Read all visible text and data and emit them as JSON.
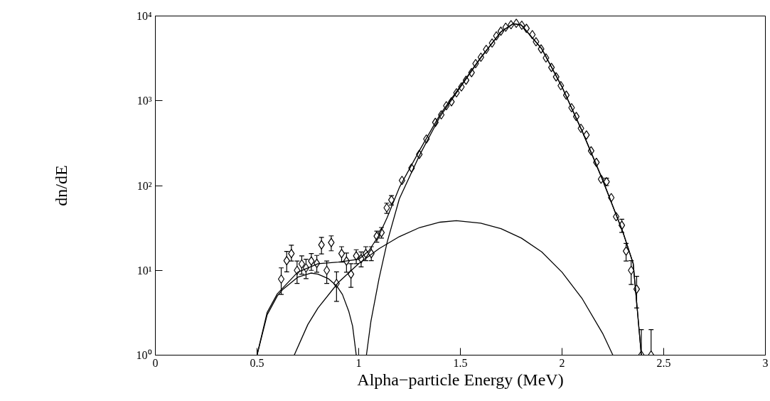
{
  "chart_data": {
    "type": "scatter",
    "xlabel": "Alpha−particle Energy (MeV)",
    "ylabel": "dn/dE",
    "log": "y",
    "grid": false,
    "marker": "diamond",
    "xlim": [
      0,
      3
    ],
    "xticks": [
      0,
      0.5,
      1,
      1.5,
      2,
      2.5,
      3
    ],
    "ylim": [
      1,
      10000
    ],
    "yticks": [
      {
        "value": 1,
        "label": "10⁰"
      },
      {
        "value": 10,
        "label": "10¹"
      },
      {
        "value": 100,
        "label": "10²"
      },
      {
        "value": 1000,
        "label": "10³"
      },
      {
        "value": 10000,
        "label": "10⁴"
      }
    ],
    "series": [
      {
        "color": "#000000",
        "x": [
          0.619,
          0.646,
          0.669,
          0.697,
          0.72,
          0.741,
          0.767,
          0.794,
          0.817,
          0.843,
          0.865,
          0.891,
          0.916,
          0.94,
          0.962,
          0.988,
          1.012,
          1.035,
          1.062,
          1.089,
          1.112,
          1.138,
          1.161,
          1.213,
          1.26,
          1.298,
          1.333,
          1.377,
          1.406,
          1.431,
          1.456,
          1.481,
          1.505,
          1.528,
          1.555,
          1.575,
          1.601,
          1.627,
          1.656,
          1.677,
          1.699,
          1.723,
          1.749,
          1.775,
          1.802,
          1.825,
          1.854,
          1.872,
          1.897,
          1.921,
          1.948,
          1.971,
          1.994,
          2.021,
          2.047,
          2.07,
          2.093,
          2.12,
          2.143,
          2.169,
          2.192,
          2.219,
          2.242,
          2.266,
          2.294,
          2.315,
          2.34,
          2.367,
          2.39,
          2.438
        ],
        "values": [
          7.9,
          13,
          15.8,
          10,
          11.9,
          10.7,
          12.9,
          12.1,
          20,
          10,
          21.3,
          7,
          15.8,
          12.9,
          9,
          14.8,
          13.7,
          15.8,
          15.8,
          25.3,
          27.9,
          54.7,
          67.7,
          115,
          161,
          233,
          354,
          556,
          683,
          873,
          973,
          1243,
          1458,
          1749,
          2148,
          2744,
          3264,
          4037,
          4801,
          5822,
          6625,
          7380,
          7890,
          8200,
          7780,
          7160,
          6020,
          4970,
          4090,
          3200,
          2476,
          1914,
          1507,
          1166,
          829,
          653,
          473,
          395,
          257,
          188,
          119,
          111,
          72,
          43,
          34,
          16.9,
          10,
          6,
          1,
          1
        ],
        "errors": [
          [
            5.2,
            10.7
          ],
          [
            9.6,
            16.7
          ],
          [
            12.9,
            19.8
          ],
          [
            7,
            12.9
          ],
          [
            9,
            14.8
          ],
          [
            8,
            13.5
          ],
          [
            10,
            15.8
          ],
          [
            9.5,
            15
          ],
          [
            15.6,
            24.5
          ],
          [
            7,
            12.9
          ],
          [
            17,
            25.5
          ],
          [
            4.3,
            9.6
          ],
          [
            12.5,
            19
          ],
          [
            9.5,
            16
          ],
          [
            6.3,
            12
          ],
          [
            12,
            17.5
          ],
          [
            11,
            16.5
          ],
          [
            13,
            19
          ],
          [
            13,
            19
          ],
          [
            21.5,
            29
          ],
          [
            24,
            32
          ],
          [
            47,
            62
          ],
          [
            59,
            76
          ],
          null,
          null,
          null,
          null,
          null,
          null,
          null,
          null,
          null,
          null,
          null,
          null,
          null,
          null,
          null,
          null,
          null,
          null,
          null,
          null,
          null,
          null,
          null,
          null,
          null,
          null,
          null,
          null,
          null,
          null,
          null,
          null,
          null,
          null,
          null,
          null,
          null,
          null,
          [
            100,
            122
          ],
          null,
          null,
          [
            28,
            40
          ],
          [
            12.9,
            20.8
          ],
          [
            6.8,
            13
          ],
          [
            3.6,
            8.5
          ],
          [
            1,
            2
          ],
          [
            1,
            2
          ]
        ]
      },
      {
        "type": "line",
        "marker": "none",
        "color": "#000000",
        "x": [
          0.5,
          0.55,
          0.6,
          0.625,
          0.7,
          0.765,
          0.8,
          0.85,
          0.893,
          0.92,
          0.951,
          0.97,
          0.988
        ],
        "values": [
          1,
          3,
          5,
          5.9,
          8.3,
          9.3,
          9,
          8,
          6.5,
          5.2,
          3.3,
          2.2,
          1
        ]
      },
      {
        "type": "line",
        "marker": "none",
        "color": "#000000",
        "x": [
          0.683,
          0.75,
          0.8,
          0.9,
          1,
          1.1,
          1.2,
          1.3,
          1.4,
          1.48,
          1.6,
          1.7,
          1.8,
          1.9,
          2,
          2.1,
          2.2,
          2.25
        ],
        "values": [
          1,
          2.3,
          3.6,
          7.2,
          12,
          18,
          25,
          32,
          37,
          38.5,
          36,
          31,
          24,
          16.5,
          9.5,
          4.6,
          1.8,
          1
        ]
      },
      {
        "type": "line",
        "marker": "none",
        "color": "#000000",
        "x": [
          1.038,
          1.06,
          1.1,
          1.14,
          1.2,
          1.3,
          1.4,
          1.5,
          1.6,
          1.7,
          1.76,
          1.8,
          1.9,
          2,
          2.1,
          2.2,
          2.3,
          2.35,
          2.39
        ],
        "values": [
          1,
          2.5,
          8,
          21.5,
          70,
          230,
          650,
          1450,
          3200,
          6500,
          8100,
          7800,
          4100,
          1450,
          430,
          115,
          28,
          12,
          1
        ]
      },
      {
        "type": "line",
        "marker": "none",
        "color": "#000000",
        "x": [
          0.5,
          0.55,
          0.6,
          0.7,
          0.8,
          0.9,
          1,
          1.05,
          1.1,
          1.14,
          1.2,
          1.3,
          1.4,
          1.5,
          1.6,
          1.7,
          1.76,
          1.8,
          1.9,
          2,
          2.1,
          2.2,
          2.3,
          2.35,
          2.39
        ],
        "values": [
          1,
          3.2,
          5.3,
          9.5,
          12,
          12.5,
          13.5,
          17,
          26,
          42,
          95,
          262,
          687,
          1490,
          3236,
          6531,
          8130,
          7824,
          4116,
          1460,
          435,
          117,
          28,
          12,
          1
        ]
      }
    ]
  }
}
